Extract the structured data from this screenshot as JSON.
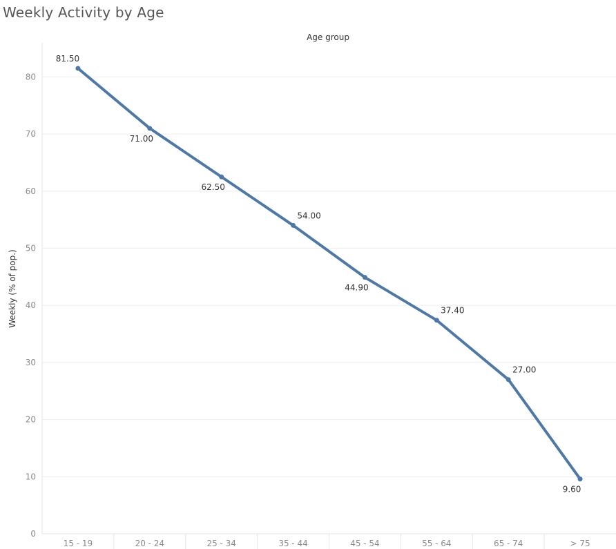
{
  "chart_data": {
    "type": "line",
    "title": "Weekly Activity by Age",
    "x_header": "Age group",
    "ylabel": "Weekly (% of pop.)",
    "categories": [
      "15 - 19",
      "20 - 24",
      "25 - 34",
      "35 - 44",
      "45 - 54",
      "55 - 64",
      "65 - 74",
      "> 75"
    ],
    "values": [
      81.5,
      71.0,
      62.5,
      54.0,
      44.9,
      37.4,
      27.0,
      9.6
    ],
    "data_labels": [
      "81.50",
      "71.00",
      "62.50",
      "54.00",
      "44.90",
      "37.40",
      "27.00",
      "9.60"
    ],
    "yticks": [
      0,
      10,
      20,
      30,
      40,
      50,
      60,
      70,
      80
    ],
    "ylim": [
      0,
      85
    ],
    "grid": true,
    "legend": "none",
    "colors": {
      "line": "#4e79a7",
      "grid": "#eeeeee",
      "axis": "#e6e6e6"
    }
  }
}
